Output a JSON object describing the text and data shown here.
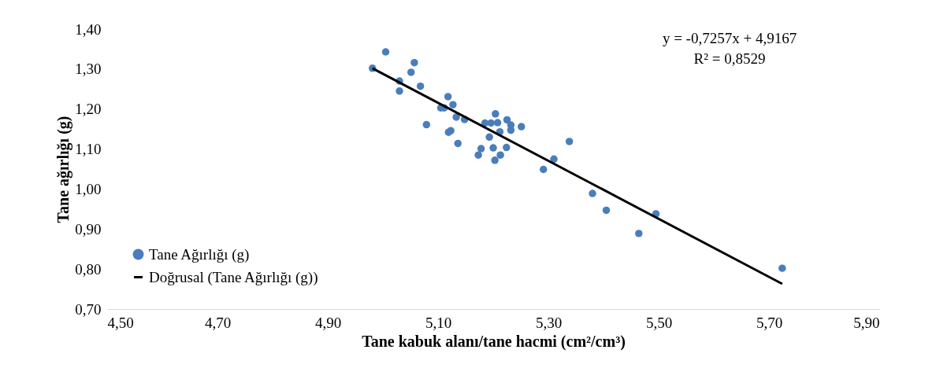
{
  "chart_data": {
    "type": "scatter",
    "xlabel": "Tane kabuk alanı/tane hacmi (cm²/cm³)",
    "ylabel": "Tane ağırlığı (g)",
    "xlim": [
      4.5,
      5.9
    ],
    "ylim": [
      0.7,
      1.4
    ],
    "xticks": [
      {
        "value": 4.5,
        "label": "4,50"
      },
      {
        "value": 4.7,
        "label": "4,70"
      },
      {
        "value": 4.9,
        "label": "4,90"
      },
      {
        "value": 5.1,
        "label": "5,10"
      },
      {
        "value": 5.3,
        "label": "5,30"
      },
      {
        "value": 5.5,
        "label": "5,50"
      },
      {
        "value": 5.7,
        "label": "5,70"
      },
      {
        "value": 5.9,
        "label": "5,90"
      }
    ],
    "yticks": [
      {
        "value": 0.7,
        "label": "0,70"
      },
      {
        "value": 0.8,
        "label": "0,80"
      },
      {
        "value": 0.9,
        "label": "0,90"
      },
      {
        "value": 1.0,
        "label": "1,00"
      },
      {
        "value": 1.1,
        "label": "1,10"
      },
      {
        "value": 1.2,
        "label": "1,20"
      },
      {
        "value": 1.3,
        "label": "1,30"
      },
      {
        "value": 1.4,
        "label": "1,40"
      }
    ],
    "grid": false,
    "legend": "bottom left",
    "marker": "circle",
    "annotations": [
      "y = -0,7257x + 4,9167",
      "R² = 0,8529"
    ],
    "series": [
      {
        "name": "Tane Ağırlığı (g)",
        "color": "#4a7ebb",
        "x": [
          4.981,
          5.005,
          5.057,
          5.051,
          5.03,
          5.03,
          5.068,
          5.118,
          5.127,
          5.105,
          5.111,
          5.133,
          5.148,
          5.079,
          5.119,
          5.123,
          5.136,
          5.204,
          5.185,
          5.196,
          5.208,
          5.225,
          5.232,
          5.232,
          5.251,
          5.212,
          5.193,
          5.178,
          5.173,
          5.2,
          5.224,
          5.213,
          5.203,
          5.338,
          5.31,
          5.291,
          5.38,
          5.405,
          5.495,
          5.464,
          5.724
        ],
        "values": [
          1.302,
          1.343,
          1.316,
          1.292,
          1.27,
          1.245,
          1.257,
          1.231,
          1.211,
          1.203,
          1.203,
          1.18,
          1.174,
          1.161,
          1.142,
          1.146,
          1.114,
          1.188,
          1.165,
          1.165,
          1.166,
          1.173,
          1.16,
          1.147,
          1.156,
          1.143,
          1.13,
          1.101,
          1.085,
          1.103,
          1.104,
          1.085,
          1.072,
          1.119,
          1.075,
          1.049,
          0.989,
          0.947,
          0.938,
          0.889,
          0.802
        ]
      },
      {
        "name": "Doğrusal (Tane Ağırlığı (g))",
        "type": "line",
        "color": "#000000",
        "line_style": "solid",
        "marker": "none",
        "x": [
          4.981,
          5.724
        ],
        "values": [
          1.302,
          0.763
        ]
      }
    ]
  }
}
